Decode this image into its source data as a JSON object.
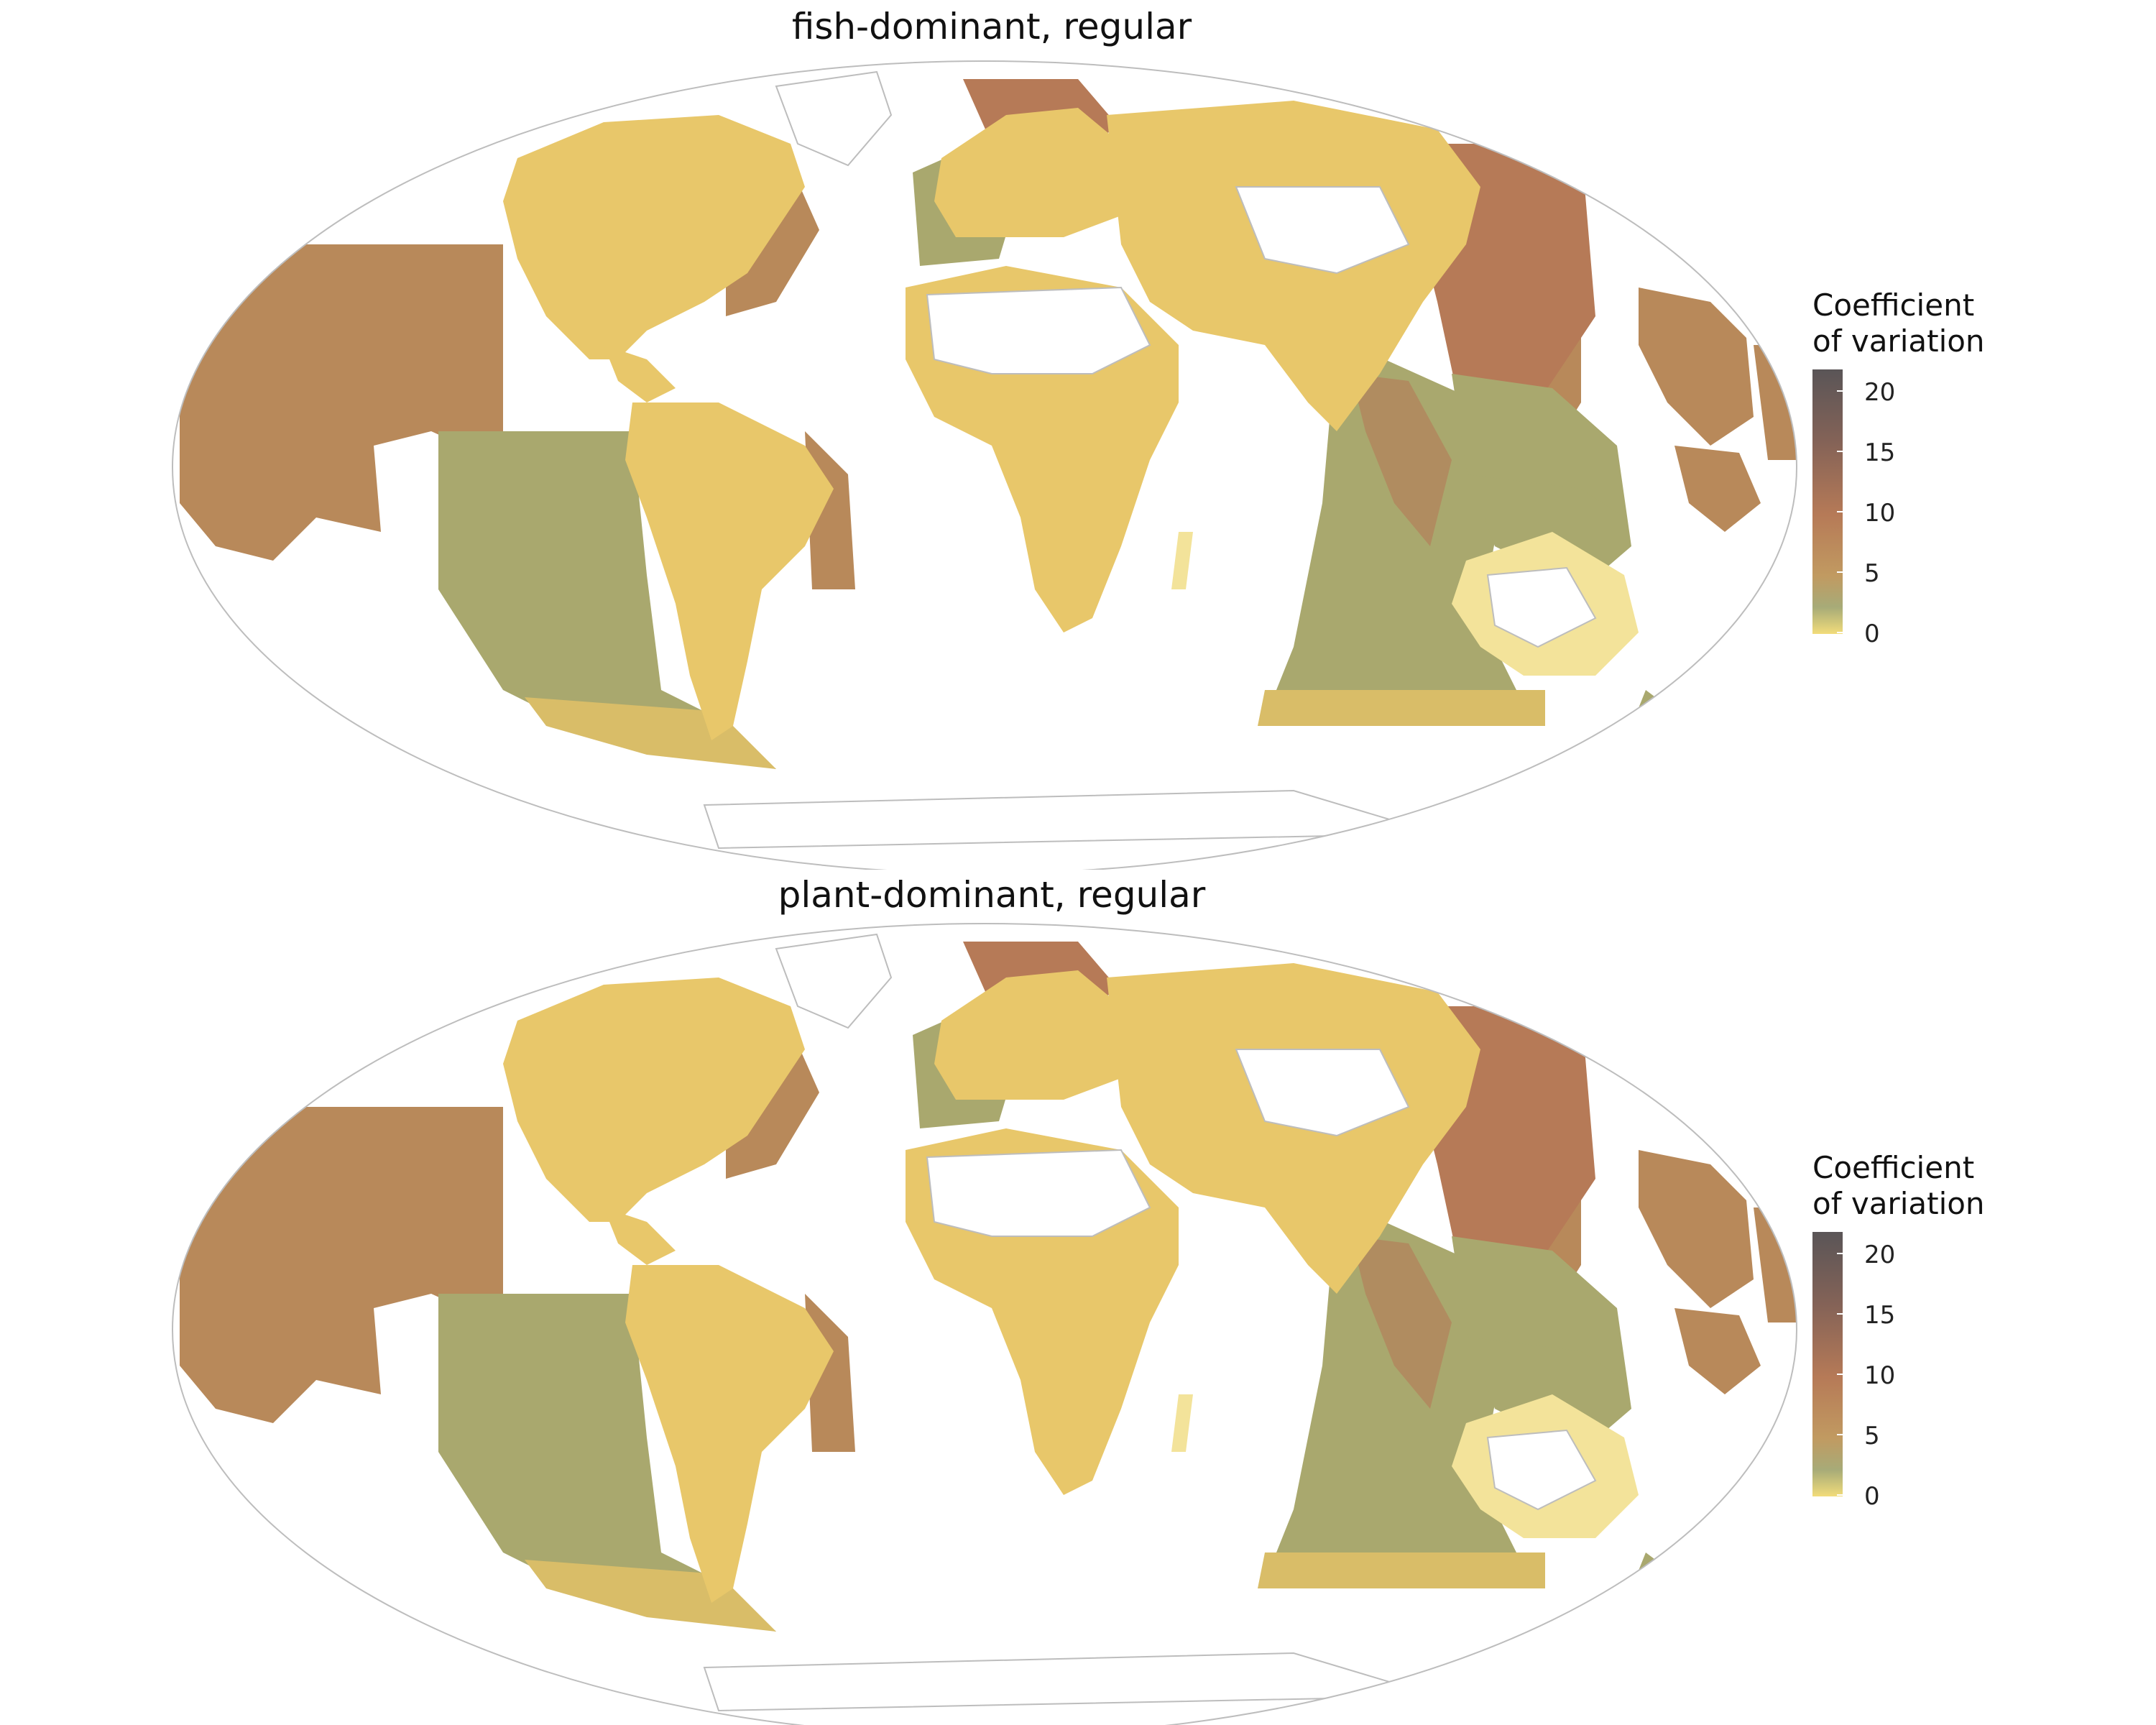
{
  "panels": [
    {
      "title": "fish-dominant, regular",
      "legend": {
        "title_line1": "Coefficient",
        "title_line2": "of variation",
        "ticks": [
          "20",
          "15",
          "10",
          "5",
          "0"
        ]
      }
    },
    {
      "title": "plant-dominant, regular",
      "legend": {
        "title_line1": "Coefficient",
        "title_line2": "of variation",
        "ticks": [
          "20",
          "15",
          "10",
          "5",
          "0"
        ]
      }
    }
  ],
  "scale": {
    "min": 0,
    "max": 22,
    "colors": {
      "low": "#f2dc7a",
      "low_mid": "#a7ab78",
      "mid": "#c19a61",
      "high_mid": "#b67a57",
      "high": "#856357",
      "max": "#5a5557"
    }
  },
  "map": {
    "projection": "Mollweide",
    "land_color": "#e8c76a",
    "ocean_shelf_color": "#a9a86e",
    "ocean_open_color": "#b8895a",
    "border_color": "#bdbdbd"
  }
}
